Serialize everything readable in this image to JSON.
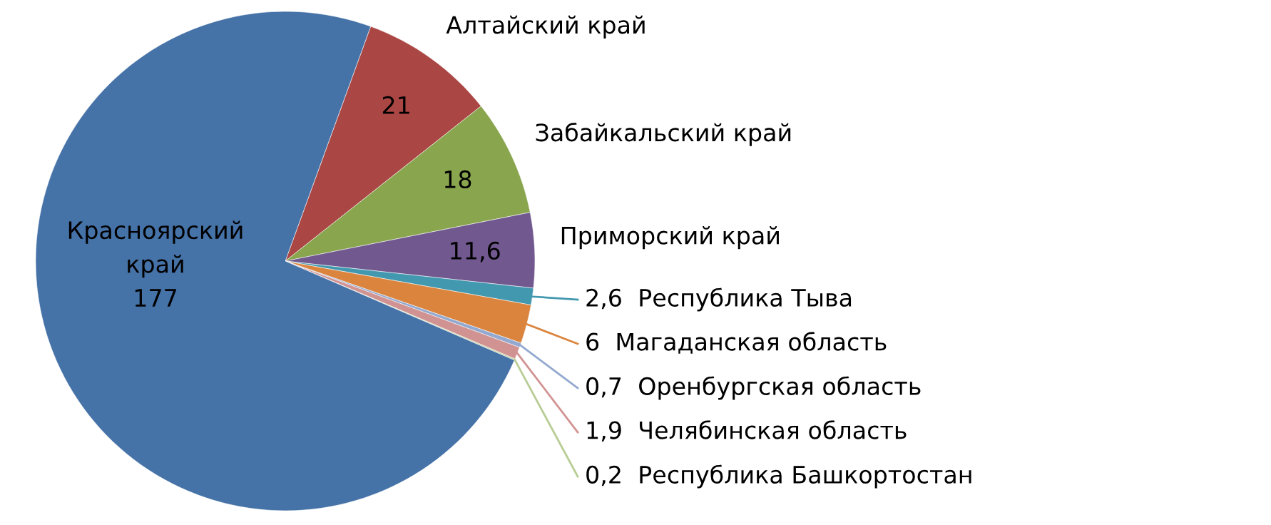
{
  "chart_data": {
    "type": "pie",
    "categories": [
      "Алтайский край",
      "Забайкальский край",
      "Приморский край",
      "Республика Тыва",
      "Магаданская область",
      "Оренбургская область",
      "Челябинская область",
      "Республика Башкортостан",
      "Красноярский край"
    ],
    "values": [
      21,
      18,
      11.6,
      2.6,
      6,
      0.7,
      1.9,
      0.2,
      177
    ],
    "value_labels": [
      "21",
      "18",
      "11,6",
      "2,6",
      "6",
      "0,7",
      "1,9",
      "0,2",
      "177"
    ],
    "colors": [
      "#aa4643",
      "#89a54e",
      "#71588f",
      "#4198af",
      "#db843d",
      "#93a9cf",
      "#d19392",
      "#b9cd96",
      "#4572a7"
    ],
    "legend": false
  }
}
